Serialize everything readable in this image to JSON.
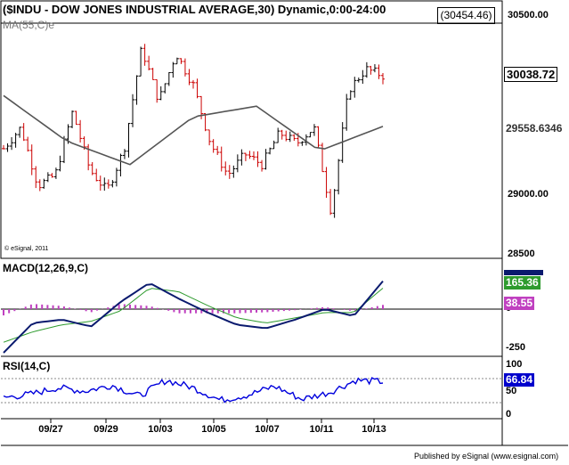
{
  "header": {
    "title": "($INDU - DOW JONES INDUSTRIAL AVERAGE,30) Dynamic,0:00-24:00",
    "ma_label": "MA(55,C)e",
    "last_value": "(30454.46)",
    "copyright": "© eSignal, 2011"
  },
  "price_axis": [
    "30500.00",
    "29000.00",
    "28500"
  ],
  "price_tags": {
    "close": "30038.72",
    "ma": "29558.6346"
  },
  "macd": {
    "label": "MACD(12,26,9,C)",
    "axis": [
      "0",
      "-250"
    ],
    "tags": [
      "165.36",
      "38.55"
    ]
  },
  "rsi": {
    "label": "RSI(14,C)",
    "axis": [
      "100",
      "50",
      "0"
    ],
    "tag": "66.84"
  },
  "x_axis": {
    "dates": [
      "09/27",
      "09/29",
      "10/03",
      "10/05",
      "10/07",
      "10/11",
      "10/13"
    ]
  },
  "footer": {
    "publisher": "Published by eSignal (www.esignal.com)"
  },
  "colors": {
    "up_bar": "#000000",
    "down_bar": "#cc0000",
    "ma_line": "#555555",
    "macd_line": "#0a1a6e",
    "signal_line": "#2e9b2e",
    "histogram": "#c040c0",
    "rsi_line": "#0000dd",
    "tag_close_bg": "#ffffff",
    "tag_macd_bg": "#2e9b2e",
    "tag_hist_bg": "#c040c0",
    "tag_rsi_bg": "#0000cc"
  },
  "chart_data": [
    {
      "type": "candlestick",
      "title": "($INDU - DOW JONES INDUSTRIAL AVERAGE,30) Dynamic,0:00-24:00",
      "x": [
        "09/27",
        "09/29",
        "10/03",
        "10/05",
        "10/07",
        "10/11",
        "10/13"
      ],
      "ylim": [
        28500,
        30700
      ],
      "series": [
        {
          "name": "MA(55,C)e",
          "values": [
            29850,
            29420,
            29200,
            29650,
            29750,
            29330,
            29560
          ]
        }
      ],
      "approx_close_path": [
        29350,
        29550,
        29000,
        29100,
        29700,
        29150,
        28950,
        29350,
        30300,
        29800,
        30250,
        29950,
        29400,
        29100,
        29300,
        29200,
        29500,
        29400,
        29550,
        28750,
        29900,
        30100,
        30040
      ],
      "last": 30038.72
    },
    {
      "type": "line",
      "title": "MACD(12,26,9,C)",
      "ylim": [
        -300,
        300
      ],
      "series": [
        {
          "name": "MACD",
          "values": [
            -250,
            -80,
            -60,
            -100,
            40,
            150,
            60,
            -20,
            -90,
            -110,
            -60,
            0,
            -40,
            160
          ]
        },
        {
          "name": "Signal",
          "values": [
            -190,
            -130,
            -90,
            -70,
            -10,
            120,
            100,
            20,
            -50,
            -80,
            -50,
            -20,
            -20,
            120
          ]
        }
      ],
      "last_macd": 165.36,
      "last_hist": 38.55
    },
    {
      "type": "line",
      "title": "RSI(14,C)",
      "ylim": [
        0,
        100
      ],
      "series": [
        {
          "name": "RSI",
          "values": [
            35,
            42,
            55,
            48,
            60,
            38,
            70,
            55,
            30,
            40,
            58,
            32,
            45,
            70,
            67
          ]
        }
      ],
      "last": 66.84
    }
  ]
}
